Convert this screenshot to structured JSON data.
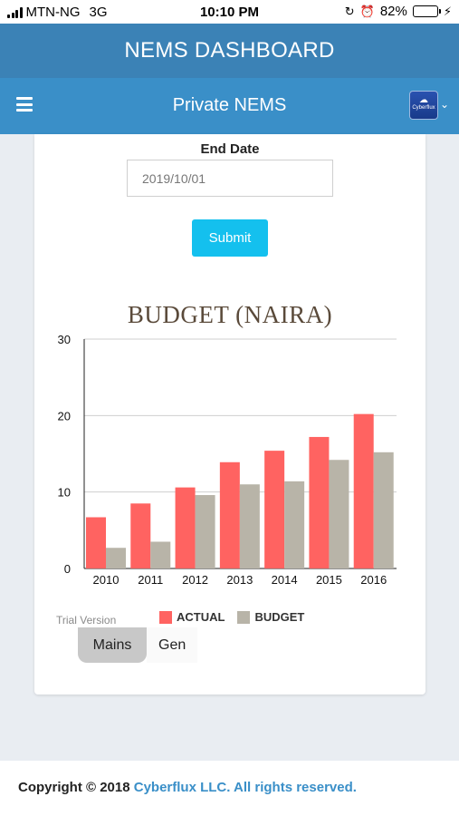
{
  "status_bar": {
    "carrier": "MTN-NG",
    "network": "3G",
    "time": "10:10 PM",
    "battery_percent": "82%",
    "battery_level": 0.82
  },
  "header": {
    "title": "NEMS DASHBOARD"
  },
  "nav": {
    "title": "Private NEMS",
    "avatar_text": "Cyberflux",
    "menu_icon": "hamburger-icon",
    "dropdown_icon": "chevron-down-icon"
  },
  "form": {
    "end_date_label": "End Date",
    "end_date_value": "2019/10/01",
    "submit_label": "Submit",
    "submit_color": "#14c0ee"
  },
  "chart_data": {
    "type": "bar",
    "title": "BUDGET (NAIRA)",
    "categories": [
      "2010",
      "2011",
      "2012",
      "2013",
      "2014",
      "2015",
      "2016"
    ],
    "series": [
      {
        "name": "ACTUAL",
        "color": "#ff6361",
        "values": [
          6.7,
          8.5,
          10.6,
          13.9,
          15.4,
          17.2,
          20.2
        ]
      },
      {
        "name": "BUDGET",
        "color": "#b8b4a8",
        "values": [
          2.7,
          3.5,
          9.6,
          11.0,
          11.4,
          14.2,
          15.2
        ]
      }
    ],
    "ylim": [
      0,
      30
    ],
    "yticks": [
      0,
      10,
      20,
      30
    ],
    "grid": true,
    "legend_position": "bottom"
  },
  "watermark": "Trial Version",
  "tabs": [
    {
      "label": "Mains",
      "active": true
    },
    {
      "label": "Gen",
      "active": false
    }
  ],
  "footer": {
    "prefix": "Copyright © 2018 ",
    "brand": "Cyberflux LLC. All rights reserved."
  }
}
